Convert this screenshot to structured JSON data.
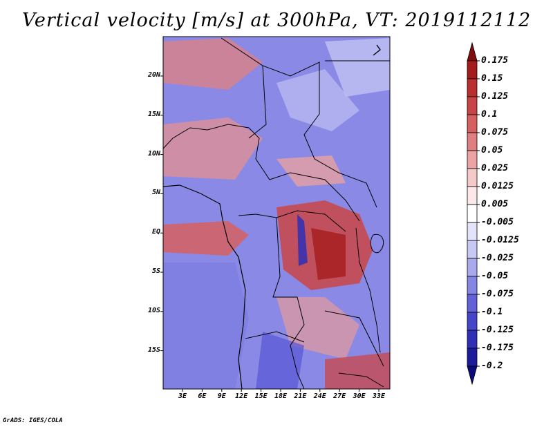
{
  "title": "Vertical velocity [m/s] at 300hPa, VT: 2019112112",
  "credit": "GrADS: IGES/COLA",
  "map": {
    "lat_labels": [
      "20N",
      "15N",
      "10N",
      "5N",
      "EQ",
      "5S",
      "10S",
      "15S"
    ],
    "lon_labels": [
      "3E",
      "6E",
      "9E",
      "12E",
      "15E",
      "18E",
      "21E",
      "24E",
      "27E",
      "30E",
      "33E"
    ]
  },
  "colorbar": {
    "labels": [
      "0.175",
      "0.15",
      "0.125",
      "0.1",
      "0.075",
      "0.05",
      "0.025",
      "0.0125",
      "0.005",
      "-0.005",
      "-0.0125",
      "-0.025",
      "-0.05",
      "-0.075",
      "-0.1",
      "-0.125",
      "-0.175",
      "-0.2"
    ],
    "colors": [
      "#7f0d0d",
      "#a51c1c",
      "#bb2e2e",
      "#c94545",
      "#d65f5f",
      "#e07f7f",
      "#eca3a3",
      "#f6c9c9",
      "#fce8e8",
      "#ffffff",
      "#e3e3fb",
      "#c8c8f5",
      "#a9a9ee",
      "#8585e4",
      "#6262d8",
      "#4545c9",
      "#2f2fb5",
      "#1c1c9a",
      "#0b0b7a"
    ]
  }
}
